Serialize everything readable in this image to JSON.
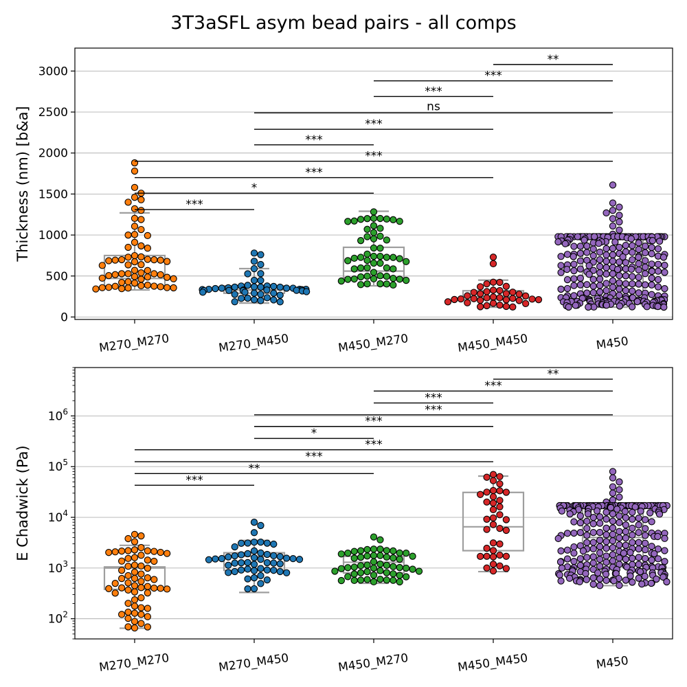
{
  "title": "3T3aSFL asym bead pairs - all comps",
  "colors": {
    "M270_M270": "#ff7f0e",
    "M270_M450": "#1f77b4",
    "M450_M270": "#2ca02c",
    "M450_M450": "#d62728",
    "M450": "#9467bd",
    "box": "#9e9e9e",
    "grid": "#b0b0b0"
  },
  "chart_data": [
    {
      "type": "swarm_box",
      "scale": "linear",
      "ylabel": "Thickness (nm) [b&a]",
      "ylim": [
        -30,
        3280
      ],
      "yticks": [
        {
          "v": 0,
          "label": "0"
        },
        {
          "v": 500,
          "label": "500"
        },
        {
          "v": 1000,
          "label": "1000"
        },
        {
          "v": 1500,
          "label": "1500"
        },
        {
          "v": 2000,
          "label": "2000"
        },
        {
          "v": 2500,
          "label": "2500"
        },
        {
          "v": 3000,
          "label": "3000"
        }
      ],
      "grid": true,
      "categories": [
        "M270_M270",
        "M270_M450",
        "M450_M270",
        "M450_M450",
        "M450"
      ],
      "boxes": [
        {
          "low": 330,
          "q1": 380,
          "median": 470,
          "q3": 750,
          "high": 1270,
          "n": 64,
          "outliers": [
            1300,
            1320,
            1400,
            1430,
            1460,
            1510,
            1580,
            1780,
            1880
          ]
        },
        {
          "low": 170,
          "q1": 290,
          "median": 330,
          "q3": 380,
          "high": 590,
          "n": 52,
          "outliers": [
            640,
            680,
            760,
            780
          ]
        },
        {
          "low": 380,
          "q1": 480,
          "median": 560,
          "q3": 850,
          "high": 1290,
          "n": 56,
          "outliers": []
        },
        {
          "low": 120,
          "q1": 210,
          "median": 250,
          "q3": 320,
          "high": 450,
          "n": 38,
          "outliers": [
            650,
            730
          ]
        },
        {
          "low": 120,
          "q1": 240,
          "median": 380,
          "q3": 980,
          "high": 980,
          "n": 300,
          "outliers": [
            1010,
            1060,
            1110,
            1160,
            1200,
            1240,
            1270,
            1300,
            1340,
            1390,
            1610
          ]
        }
      ],
      "comparisons": [
        {
          "a": 0,
          "b": 1,
          "y": 1310,
          "label": "***"
        },
        {
          "a": 0,
          "b": 2,
          "y": 1510,
          "label": "*"
        },
        {
          "a": 0,
          "b": 3,
          "y": 1700,
          "label": "***"
        },
        {
          "a": 0,
          "b": 4,
          "y": 1900,
          "label": "***"
        },
        {
          "a": 1,
          "b": 2,
          "y": 2100,
          "label": "***"
        },
        {
          "a": 1,
          "b": 3,
          "y": 2290,
          "label": "***"
        },
        {
          "a": 1,
          "b": 4,
          "y": 2490,
          "label": "ns"
        },
        {
          "a": 2,
          "b": 3,
          "y": 2690,
          "label": "***"
        },
        {
          "a": 2,
          "b": 4,
          "y": 2880,
          "label": "***"
        },
        {
          "a": 3,
          "b": 4,
          "y": 3080,
          "label": "**"
        }
      ]
    },
    {
      "type": "swarm_box",
      "scale": "log",
      "ylabel": "E Chadwick (Pa)",
      "ylim": [
        40,
        9000000
      ],
      "yticks": [
        {
          "v": 100,
          "base": "10",
          "exp": "2"
        },
        {
          "v": 1000,
          "base": "10",
          "exp": "3"
        },
        {
          "v": 10000,
          "base": "10",
          "exp": "4"
        },
        {
          "v": 100000,
          "base": "10",
          "exp": "5"
        },
        {
          "v": 1000000,
          "base": "10",
          "exp": "6"
        }
      ],
      "grid": true,
      "categories": [
        "M270_M270",
        "M270_M450",
        "M450_M270",
        "M450_M450",
        "M450"
      ],
      "boxes": [
        {
          "low": 65,
          "q1": 380,
          "median": 1000,
          "q3": 1050,
          "high": 2800,
          "n": 64,
          "outliers": [
            3300,
            3800,
            4300,
            4600
          ]
        },
        {
          "low": 330,
          "q1": 900,
          "median": 1700,
          "q3": 2000,
          "high": 3500,
          "n": 52,
          "outliers": [
            5000,
            6900,
            8000
          ]
        },
        {
          "low": 500,
          "q1": 800,
          "median": 1300,
          "q3": 1700,
          "high": 2400,
          "n": 56,
          "outliers": [
            3600,
            4100
          ]
        },
        {
          "low": 850,
          "q1": 2200,
          "median": 6500,
          "q3": 31000,
          "high": 65000,
          "n": 38,
          "outliers": [
            70000
          ]
        },
        {
          "low": 450,
          "q1": 1200,
          "median": 4000,
          "q3": 17000,
          "high": 17000,
          "n": 300,
          "outliers": [
            20000,
            22000,
            25000,
            30000,
            35000,
            40000,
            50000,
            60000,
            80000
          ]
        }
      ],
      "comparisons": [
        {
          "a": 0,
          "b": 1,
          "y": 43000,
          "label": "***"
        },
        {
          "a": 0,
          "b": 2,
          "y": 73000,
          "label": "**"
        },
        {
          "a": 0,
          "b": 3,
          "y": 125000,
          "label": "***"
        },
        {
          "a": 0,
          "b": 4,
          "y": 215000,
          "label": "***"
        },
        {
          "a": 1,
          "b": 2,
          "y": 360000,
          "label": "*"
        },
        {
          "a": 1,
          "b": 3,
          "y": 620000,
          "label": "***"
        },
        {
          "a": 1,
          "b": 4,
          "y": 1050000,
          "label": "***"
        },
        {
          "a": 2,
          "b": 3,
          "y": 1800000,
          "label": "***"
        },
        {
          "a": 2,
          "b": 4,
          "y": 3100000,
          "label": "***"
        },
        {
          "a": 3,
          "b": 4,
          "y": 5300000,
          "label": "**"
        }
      ]
    }
  ]
}
